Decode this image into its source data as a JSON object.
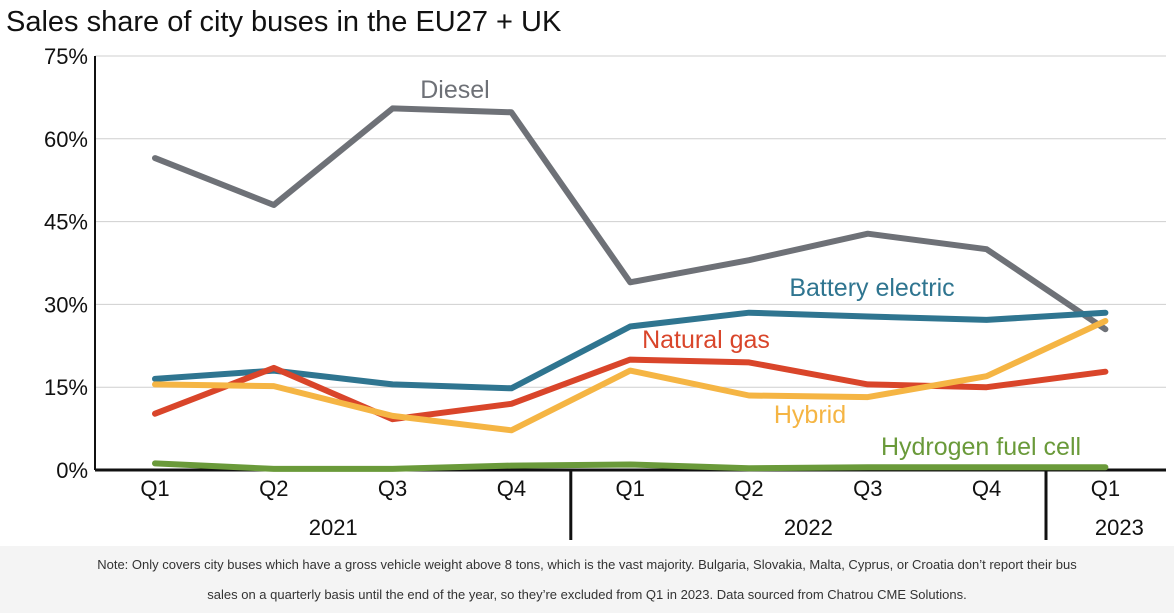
{
  "chart_data": {
    "type": "line",
    "title": "Sales share of city buses in the EU27 + UK",
    "x": [
      "Q1",
      "Q2",
      "Q3",
      "Q4",
      "Q1",
      "Q2",
      "Q3",
      "Q4",
      "Q1"
    ],
    "year_groups": [
      {
        "label": "2021",
        "start": 0,
        "end": 3
      },
      {
        "label": "2022",
        "start": 4,
        "end": 7
      },
      {
        "label": "2023",
        "start": 8,
        "end": 8
      }
    ],
    "yticks": [
      "0%",
      "15%",
      "30%",
      "45%",
      "60%",
      "75%"
    ],
    "ylim": [
      0,
      75
    ],
    "grid": true,
    "series": [
      {
        "name": "Diesel",
        "color": "#6e7177",
        "values": [
          56.5,
          48.0,
          65.5,
          64.8,
          34.0,
          38.0,
          42.8,
          40.0,
          25.5
        ]
      },
      {
        "name": "Battery electric",
        "color": "#2f7590",
        "values": [
          16.5,
          18.0,
          15.5,
          14.8,
          26.0,
          28.5,
          27.8,
          27.2,
          28.5
        ]
      },
      {
        "name": "Natural gas",
        "color": "#d9452a",
        "values": [
          10.2,
          18.5,
          9.2,
          12.0,
          20.0,
          19.5,
          15.5,
          15.0,
          17.8
        ]
      },
      {
        "name": "Hybrid",
        "color": "#f5b544",
        "values": [
          15.5,
          15.2,
          9.8,
          7.2,
          18.0,
          13.5,
          13.2,
          17.0,
          27.0
        ]
      },
      {
        "name": "Hydrogen fuel cell",
        "color": "#6a9a3a",
        "values": [
          1.2,
          0.2,
          0.2,
          0.8,
          1.0,
          0.3,
          0.5,
          0.5,
          0.5
        ]
      }
    ]
  },
  "note": {
    "line1": "Note: Only covers city buses which have a gross vehicle weight above 8 tons, which is the vast majority. Bulgaria, Slovakia, Malta, Cyprus, or Croatia don’t report their bus",
    "line2": "sales on a quarterly basis until the end of the year, so they’re excluded from Q1 in 2023. Data sourced from Chatrou CME Solutions."
  }
}
